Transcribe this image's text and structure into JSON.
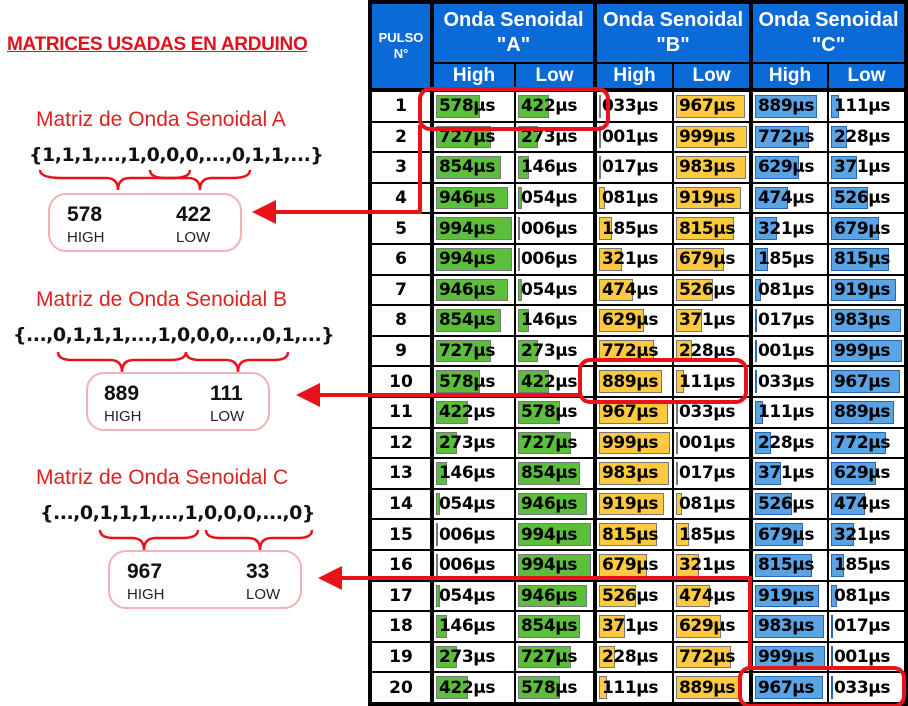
{
  "title": "MATRICES USADAS EN ARDUINO",
  "matrices": [
    {
      "title": "Matriz de Onda Senoidal A",
      "sequence": "{1,1,1,...,1,0,0,0,...,0,1,1,...}",
      "high": "578",
      "low": "422",
      "high_label": "HIGH",
      "low_label": "LOW"
    },
    {
      "title": "Matriz de Onda Senoidal B",
      "sequence": "{...,0,1,1,1,...,1,0,0,0,...,0,1,...}",
      "high": "889",
      "low": "111",
      "high_label": "HIGH",
      "low_label": "LOW"
    },
    {
      "title": "Matriz de Onda Senoidal C",
      "sequence": "{...,0,1,1,1,...,1,0,0,0,...,0}",
      "high": "967",
      "low": "33",
      "high_label": "HIGH",
      "low_label": "LOW"
    }
  ],
  "table": {
    "pulse_header": "PULSO N°",
    "groups": [
      "Onda Senoidal \"A\"",
      "Onda Senoidal \"B\"",
      "Onda Senoidal \"C\""
    ],
    "subheaders": [
      "High",
      "Low",
      "High",
      "Low",
      "High",
      "Low"
    ],
    "unit": "µs",
    "colors": {
      "A": "#5cbf3c",
      "B": "#ffc940",
      "C": "#5aa3e4",
      "header": "#0a6ad8",
      "highlight": "#e8121a"
    },
    "rows": [
      {
        "n": "1",
        "a": [
          "578",
          "422"
        ],
        "b": [
          "033",
          "967"
        ],
        "c": [
          "889",
          "111"
        ]
      },
      {
        "n": "2",
        "a": [
          "727",
          "273"
        ],
        "b": [
          "001",
          "999"
        ],
        "c": [
          "772",
          "228"
        ]
      },
      {
        "n": "3",
        "a": [
          "854",
          "146"
        ],
        "b": [
          "017",
          "983"
        ],
        "c": [
          "629",
          "371"
        ]
      },
      {
        "n": "4",
        "a": [
          "946",
          "054"
        ],
        "b": [
          "081",
          "919"
        ],
        "c": [
          "474",
          "526"
        ]
      },
      {
        "n": "5",
        "a": [
          "994",
          "006"
        ],
        "b": [
          "185",
          "815"
        ],
        "c": [
          "321",
          "679"
        ]
      },
      {
        "n": "6",
        "a": [
          "994",
          "006"
        ],
        "b": [
          "321",
          "679"
        ],
        "c": [
          "185",
          "815"
        ]
      },
      {
        "n": "7",
        "a": [
          "946",
          "054"
        ],
        "b": [
          "474",
          "526"
        ],
        "c": [
          "081",
          "919"
        ]
      },
      {
        "n": "8",
        "a": [
          "854",
          "146"
        ],
        "b": [
          "629",
          "371"
        ],
        "c": [
          "017",
          "983"
        ]
      },
      {
        "n": "9",
        "a": [
          "727",
          "273"
        ],
        "b": [
          "772",
          "228"
        ],
        "c": [
          "001",
          "999"
        ]
      },
      {
        "n": "10",
        "a": [
          "578",
          "422"
        ],
        "b": [
          "889",
          "111"
        ],
        "c": [
          "033",
          "967"
        ]
      },
      {
        "n": "11",
        "a": [
          "422",
          "578"
        ],
        "b": [
          "967",
          "033"
        ],
        "c": [
          "111",
          "889"
        ]
      },
      {
        "n": "12",
        "a": [
          "273",
          "727"
        ],
        "b": [
          "999",
          "001"
        ],
        "c": [
          "228",
          "772"
        ]
      },
      {
        "n": "13",
        "a": [
          "146",
          "854"
        ],
        "b": [
          "983",
          "017"
        ],
        "c": [
          "371",
          "629"
        ]
      },
      {
        "n": "14",
        "a": [
          "054",
          "946"
        ],
        "b": [
          "919",
          "081"
        ],
        "c": [
          "526",
          "474"
        ]
      },
      {
        "n": "15",
        "a": [
          "006",
          "994"
        ],
        "b": [
          "815",
          "185"
        ],
        "c": [
          "679",
          "321"
        ]
      },
      {
        "n": "16",
        "a": [
          "006",
          "994"
        ],
        "b": [
          "679",
          "321"
        ],
        "c": [
          "815",
          "185"
        ]
      },
      {
        "n": "17",
        "a": [
          "054",
          "946"
        ],
        "b": [
          "526",
          "474"
        ],
        "c": [
          "919",
          "081"
        ]
      },
      {
        "n": "18",
        "a": [
          "146",
          "854"
        ],
        "b": [
          "371",
          "629"
        ],
        "c": [
          "983",
          "017"
        ]
      },
      {
        "n": "19",
        "a": [
          "273",
          "727"
        ],
        "b": [
          "228",
          "772"
        ],
        "c": [
          "999",
          "001"
        ]
      },
      {
        "n": "20",
        "a": [
          "422",
          "578"
        ],
        "b": [
          "111",
          "889"
        ],
        "c": [
          "967",
          "033"
        ]
      }
    ]
  }
}
